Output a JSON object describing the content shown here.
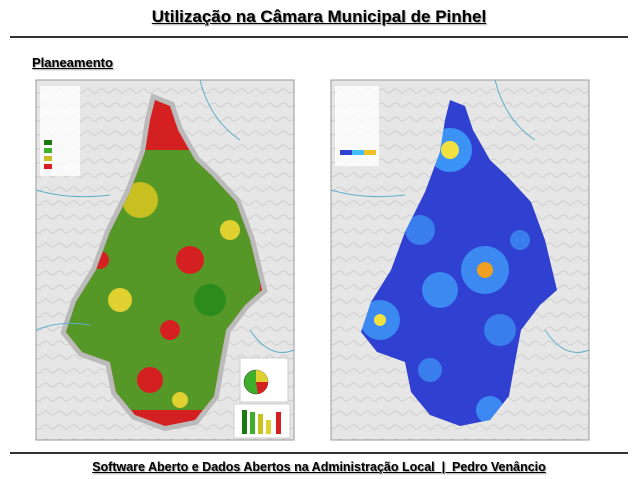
{
  "header": {
    "title": "Utilização na Câmara Municipal de Pinhel"
  },
  "section": {
    "title": "Planeamento"
  },
  "footer": {
    "text": "Software Aberto e Dados Abertos na Administração Local  |  Pedro Venâncio"
  }
}
